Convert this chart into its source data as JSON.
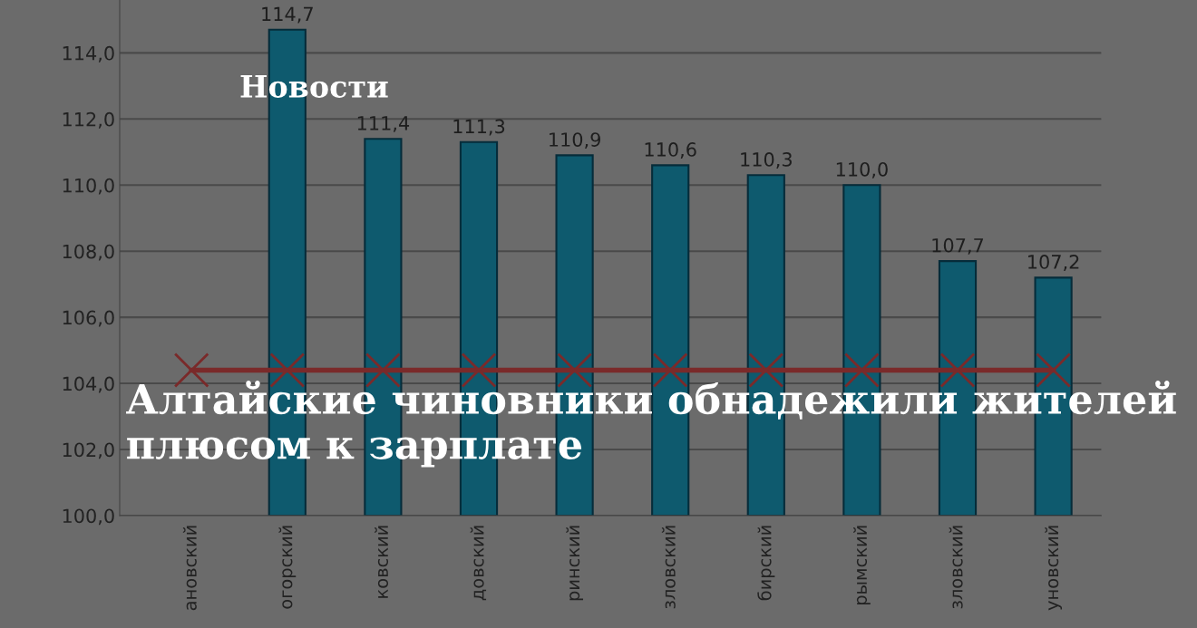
{
  "chart_data": {
    "type": "bar",
    "title": "Алтайские чиновники обнадежили жителей плюсом к зарплате",
    "annotations": [
      "Новости"
    ],
    "categories": [
      "ановский",
      "огорский",
      "ковский",
      "довский",
      "ринский",
      "зловский",
      "бирский",
      "рымский",
      "зловский",
      "уновский"
    ],
    "series": [
      {
        "color": "#0e5a6e",
        "values": [
          null,
          114.7,
          111.4,
          111.3,
          110.9,
          110.6,
          110.3,
          110.0,
          107.7,
          107.2
        ],
        "value_labels": [
          null,
          "114,7",
          "111,4",
          "111,3",
          "110,9",
          "110,6",
          "110,3",
          "110,0",
          "107,7",
          "107,2"
        ]
      },
      {
        "type": "line",
        "color": "#7a2a2a",
        "marker": "cross",
        "values": [
          104.4,
          104.4,
          104.4,
          104.4,
          104.4,
          104.4,
          104.4,
          104.4,
          104.4,
          104.4
        ]
      }
    ],
    "ylim": [
      100,
      115.6
    ],
    "yticks": [
      {
        "value": 100,
        "label": "100,0"
      },
      {
        "value": 102,
        "label": "102,0"
      },
      {
        "value": 104,
        "label": "104,0"
      },
      {
        "value": 106,
        "label": "106,0"
      },
      {
        "value": 108,
        "label": "108,0"
      },
      {
        "value": 110,
        "label": "110,0"
      },
      {
        "value": 112,
        "label": "112,0"
      },
      {
        "value": 114,
        "label": "114,0"
      }
    ],
    "grid": "y"
  }
}
